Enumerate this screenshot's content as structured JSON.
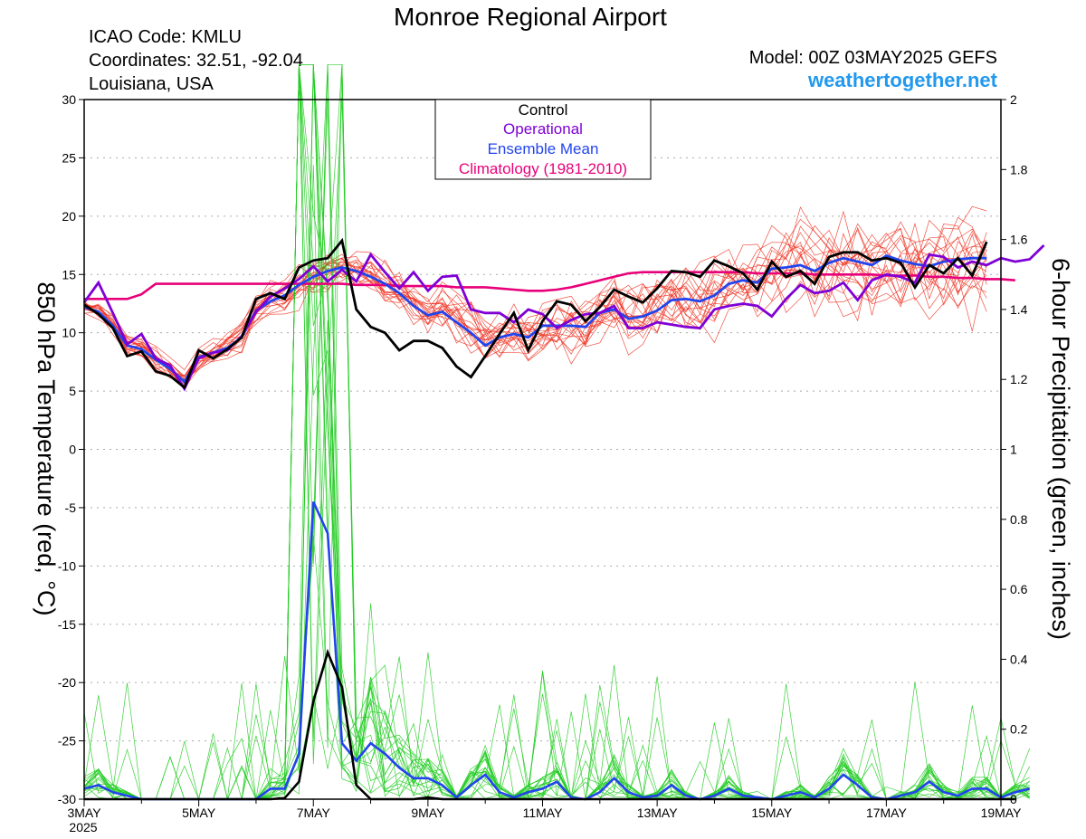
{
  "header": {
    "title": "Monroe Regional Airport",
    "icao": "ICAO Code: KMLU",
    "coords": "Coordinates: 32.51, -92.04",
    "region": "Louisiana, USA",
    "model": "Model: 00Z 03MAY2025 GEFS",
    "site": "weathertogether.net"
  },
  "colors": {
    "control": "#000000",
    "operational": "#7f00d6",
    "ensemble_mean": "#2244ee",
    "climatology": "#e8007a",
    "members_temp": "#ee3322",
    "members_precip": "#22cc22",
    "site": "#2299ee"
  },
  "chart_data": {
    "type": "line",
    "x_start": "2025-05-03",
    "x_end": "2025-05-19",
    "x_step_hours": 6,
    "x_ticks": [
      "3MAY",
      "5MAY",
      "7MAY",
      "9MAY",
      "11MAY",
      "13MAY",
      "15MAY",
      "17MAY",
      "19MAY"
    ],
    "x_year_label": "2025",
    "ylabel_left": "850 hPa Temperature (red, °C)",
    "ylabel_right": "6-hour Precipitation (green, inches)",
    "ylim_left": [
      -30,
      30
    ],
    "yticks_left": [
      30,
      25,
      20,
      15,
      10,
      5,
      0,
      -5,
      -10,
      -15,
      -20,
      -25,
      -30
    ],
    "ylim_right": [
      0,
      2
    ],
    "yticks_right": [
      "2",
      "1.8",
      "1.6",
      "1.4",
      "1.2",
      "1",
      "0.8",
      "0.6",
      "0.4",
      "0.2",
      "0"
    ],
    "grid": true,
    "legend": {
      "position": "top-center",
      "entries": [
        "Control",
        "Operational",
        "Ensemble Mean",
        "Climatology (1981-2010)"
      ]
    },
    "temperature": {
      "control": [
        12.4,
        11.6,
        10.4,
        8.0,
        8.4,
        6.7,
        6.3,
        5.3,
        8.5,
        7.8,
        8.6,
        9.6,
        12.9,
        13.4,
        12.9,
        15.6,
        16.2,
        16.4,
        17.9,
        12.0,
        10.5,
        10.0,
        8.5,
        9.3,
        9.3,
        8.7,
        7.1,
        6.2,
        8.0,
        9.9,
        11.7,
        8.5,
        11.0,
        12.7,
        12.4,
        11.0,
        12.2,
        13.7,
        13.1,
        12.6,
        13.8,
        15.3,
        15.2,
        14.8,
        16.2,
        15.7,
        15.1,
        13.7,
        16.1,
        14.8,
        15.3,
        14.2,
        16.5,
        16.9,
        16.9,
        16.2,
        16.4,
        16.0,
        13.9,
        15.8,
        15.1,
        16.4,
        14.9,
        17.8
      ],
      "operational": [
        12.6,
        14.3,
        11.7,
        9.0,
        9.9,
        7.8,
        7.2,
        5.2,
        7.8,
        8.3,
        8.5,
        9.7,
        11.8,
        13.1,
        13.8,
        14.6,
        15.7,
        14.4,
        15.4,
        14.4,
        16.7,
        15.2,
        13.8,
        15.2,
        13.6,
        14.8,
        14.9,
        12.0,
        11.7,
        11.7,
        10.9,
        12.0,
        11.6,
        10.4,
        11.1,
        11.6,
        11.7,
        12.3,
        10.4,
        10.4,
        10.9,
        10.7,
        10.5,
        10.4,
        12.0,
        12.3,
        12.5,
        12.3,
        11.4,
        12.9,
        14.1,
        13.4,
        13.6,
        14.3,
        12.8,
        14.5,
        15.0,
        14.8,
        14.3,
        16.7,
        16.5,
        15.6,
        16.1,
        15.8,
        16.4,
        16.1,
        16.3,
        17.5
      ],
      "ensemble_mean": [
        12.2,
        11.8,
        10.6,
        8.9,
        8.6,
        7.7,
        6.9,
        5.8,
        7.9,
        8.3,
        8.7,
        9.6,
        11.9,
        12.7,
        13.2,
        14.1,
        14.8,
        15.3,
        15.6,
        15.3,
        14.8,
        14.2,
        13.4,
        12.3,
        11.5,
        11.8,
        10.9,
        10.0,
        8.9,
        9.6,
        9.9,
        9.6,
        10.6,
        10.6,
        10.6,
        10.5,
        11.7,
        12.0,
        11.2,
        11.4,
        11.9,
        12.8,
        12.9,
        12.7,
        13.2,
        14.2,
        14.5,
        14.3,
        15.5,
        15.6,
        15.8,
        15.3,
        16.0,
        16.4,
        16.1,
        15.8,
        16.6,
        16.2,
        15.9,
        15.7,
        16.1,
        16.3,
        16.4,
        16.4
      ],
      "climatology": [
        12.9,
        12.9,
        12.9,
        12.9,
        13.3,
        14.2,
        14.2,
        14.2,
        14.2,
        14.2,
        14.2,
        14.2,
        14.2,
        14.2,
        14.2,
        14.2,
        14.2,
        14.2,
        14.2,
        14.1,
        14.1,
        14.1,
        14.0,
        14.0,
        14.0,
        14.0,
        13.9,
        13.9,
        13.9,
        13.8,
        13.7,
        13.6,
        13.6,
        13.7,
        13.9,
        14.2,
        14.5,
        14.8,
        15.1,
        15.2,
        15.2,
        15.2,
        15.2,
        15.2,
        15.2,
        15.2,
        15.2,
        15.1,
        15.1,
        15.1,
        15.1,
        15.0,
        15.0,
        15.0,
        15.0,
        15.0,
        14.9,
        14.9,
        14.9,
        14.8,
        14.8,
        14.7,
        14.7,
        14.6,
        14.6,
        14.5
      ]
    },
    "precipitation": {
      "control": [
        0,
        0,
        0,
        0,
        0,
        0,
        0,
        0,
        0,
        0,
        0,
        0,
        0,
        0,
        0.003,
        0.05,
        0.28,
        0.42,
        0.32,
        0.04,
        0,
        0,
        0,
        0,
        0.005,
        0,
        0,
        0,
        0,
        0,
        0,
        0,
        0,
        0,
        0,
        0,
        0,
        0,
        0,
        0,
        0,
        0,
        0,
        0,
        0,
        0,
        0,
        0,
        0,
        0,
        0,
        0,
        0,
        0,
        0,
        0,
        0,
        0,
        0,
        0,
        0,
        0,
        0,
        0,
        0,
        0
      ],
      "ensemble_mean": [
        0.03,
        0.04,
        0.02,
        0.01,
        0,
        0,
        0,
        0,
        0,
        0,
        0,
        0,
        0,
        0.03,
        0.03,
        0.13,
        0.85,
        0.76,
        0.16,
        0.11,
        0.16,
        0.13,
        0.09,
        0.06,
        0.06,
        0.04,
        0.005,
        0.04,
        0.07,
        0.02,
        0.005,
        0.02,
        0.03,
        0.05,
        0.005,
        0,
        0.02,
        0.06,
        0.02,
        0.005,
        0.01,
        0.04,
        0.01,
        0,
        0.01,
        0.03,
        0.01,
        0.005,
        0,
        0.01,
        0.02,
        0.005,
        0.03,
        0.07,
        0.04,
        0.005,
        0,
        0.01,
        0.02,
        0.05,
        0.02,
        0.01,
        0.03,
        0.03,
        0.005,
        0.02,
        0.03
      ]
    }
  }
}
